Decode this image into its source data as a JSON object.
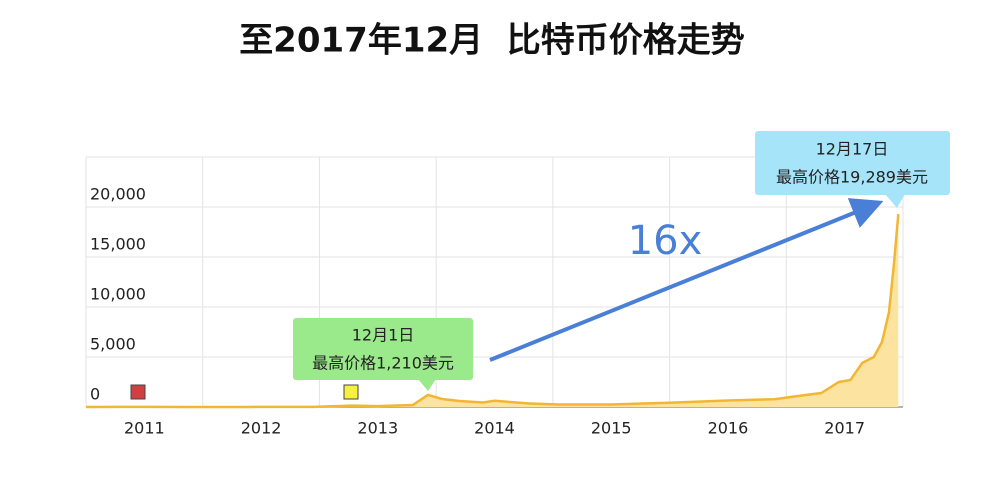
{
  "chart_data": {
    "type": "area",
    "title": "至2017年12月  比特币价格走势",
    "x": [
      2011.0,
      2011.45,
      2011.9,
      2012.4,
      2012.95,
      2013.28,
      2013.5,
      2013.8,
      2013.93,
      2014.05,
      2014.2,
      2014.4,
      2014.5,
      2014.8,
      2015.05,
      2015.5,
      2016.0,
      2016.5,
      2016.9,
      2017.1,
      2017.3,
      2017.45,
      2017.55,
      2017.65,
      2017.75,
      2017.82,
      2017.88,
      2017.92,
      2017.96
    ],
    "series": [
      {
        "color": "#f2b632",
        "fill": "#fde3a0",
        "values": [
          0.3,
          15,
          4,
          6,
          13,
          140,
          90,
          200,
          1210,
          800,
          600,
          450,
          620,
          350,
          250,
          250,
          430,
          650,
          780,
          1100,
          1400,
          2500,
          2700,
          4400,
          5000,
          6500,
          9500,
          14000,
          19289
        ]
      }
    ],
    "xlim": [
      2011,
      2018
    ],
    "xticks": [
      2011,
      2012,
      2013,
      2014,
      2015,
      2016,
      2017
    ],
    "ylim": [
      0,
      25000
    ],
    "yticks": [
      0,
      {
        "value": 5000,
        "label": "5,000"
      },
      {
        "value": 10000,
        "label": "10,000"
      },
      {
        "value": 15000,
        "label": "15,000"
      },
      {
        "value": 20000,
        "label": "20,000"
      }
    ],
    "grid": true,
    "annotations": [
      {
        "lines": [
          "12月1日",
          "最高价格1,210美元"
        ],
        "color": "#9aea8c"
      },
      {
        "lines": [
          "12月17日",
          "最高价格19,289美元"
        ],
        "color": "#a6e4fa"
      },
      {
        "text": "16x",
        "color": "#4a7fd8"
      }
    ]
  }
}
